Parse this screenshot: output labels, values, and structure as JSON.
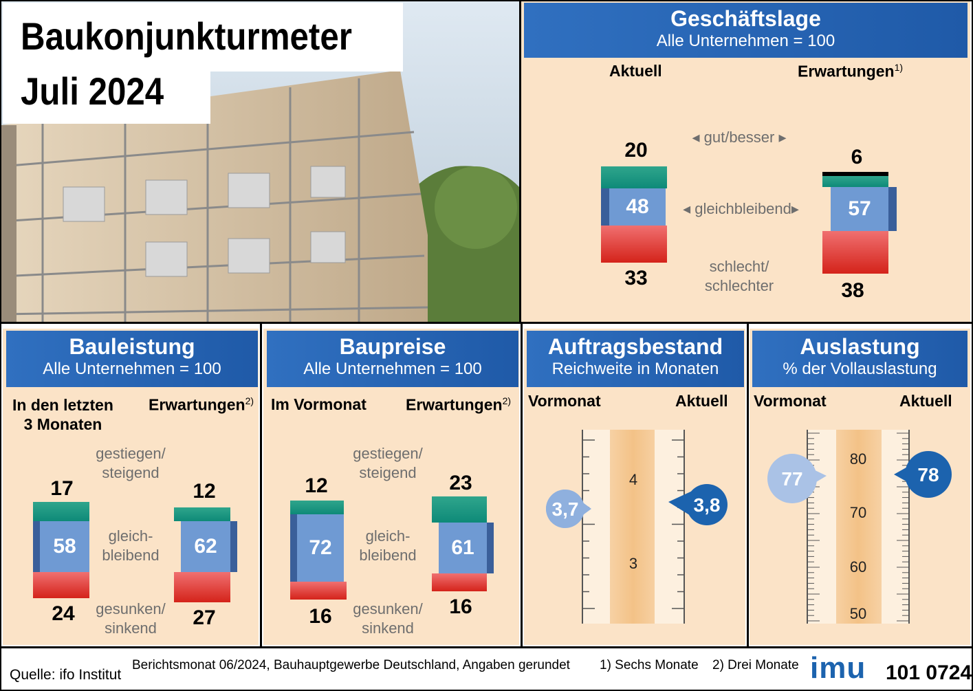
{
  "title": {
    "line1": "Baukonjunkturmeter",
    "line2": "Juli 2024"
  },
  "geschaeftslage": {
    "title": "Geschäftslage",
    "subtitle": "Alle Unternehmen = 100",
    "col_left": "Aktuell",
    "col_right": "Erwartungen",
    "col_right_note": "1)",
    "label_good": "gut/besser",
    "label_same": "gleichbleibend",
    "label_bad": "schlecht/\nschlechter"
  },
  "bauleistung": {
    "title": "Bauleistung",
    "subtitle": "Alle Unternehmen = 100",
    "col_left": "In den letzten\n3 Monaten",
    "col_right": "Erwartungen",
    "col_right_note": "2)",
    "label_up": "gestiegen/\nsteigend",
    "label_same": "gleich-\nbleibend",
    "label_down": "gesunken/\nsinkend"
  },
  "baupreise": {
    "title": "Baupreise",
    "subtitle": "Alle Unternehmen = 100",
    "col_left": "Im Vormonat",
    "col_right": "Erwartungen",
    "col_right_note": "2)",
    "label_up": "gestiegen/\nsteigend",
    "label_same": "gleich-\nbleibend",
    "label_down": "gesunken/\nsinkend"
  },
  "auftragsbestand": {
    "title": "Auftragsbestand",
    "subtitle": "Reichweite in Monaten",
    "col_left": "Vormonat",
    "col_right": "Aktuell"
  },
  "auslastung": {
    "title": "Auslastung",
    "subtitle": "% der Vollauslastung",
    "col_left": "Vormonat",
    "col_right": "Aktuell"
  },
  "footer": {
    "source": "Quelle: ifo Institut",
    "note": "Berichtsmonat 06/2024, Bauhauptgewerbe Deutschland, Angaben gerundet",
    "fn1": "1) Sechs Monate",
    "fn2": "2) Drei Monate",
    "logo": "imu",
    "code": "101 0724"
  },
  "colors": {
    "header": "#2466b4",
    "panel": "#fbe3c7",
    "good": "#1a9580",
    "same": "#6f9ad3",
    "bad": "#e0352a"
  },
  "chart_data": [
    {
      "type": "stacked-bar",
      "title": "Geschäftslage",
      "categories": [
        "Aktuell",
        "Erwartungen"
      ],
      "series": [
        {
          "name": "gut/besser",
          "values": [
            20,
            6
          ]
        },
        {
          "name": "gleichbleibend",
          "values": [
            48,
            57
          ]
        },
        {
          "name": "schlecht/schlechter",
          "values": [
            33,
            38
          ]
        }
      ],
      "labels": {
        "aktuell": {
          "good": "20",
          "same": "48",
          "bad": "33"
        },
        "erwartungen": {
          "good": "6",
          "same": "57",
          "bad": "38"
        }
      }
    },
    {
      "type": "stacked-bar",
      "title": "Bauleistung",
      "categories": [
        "In den letzten 3 Monaten",
        "Erwartungen"
      ],
      "series": [
        {
          "name": "gestiegen/steigend",
          "values": [
            17,
            12
          ]
        },
        {
          "name": "gleichbleibend",
          "values": [
            58,
            62
          ]
        },
        {
          "name": "gesunken/sinkend",
          "values": [
            24,
            27
          ]
        }
      ],
      "labels": {
        "left": {
          "up": "17",
          "same": "58",
          "down": "24"
        },
        "right": {
          "up": "12",
          "same": "62",
          "down": "27"
        }
      }
    },
    {
      "type": "stacked-bar",
      "title": "Baupreise",
      "categories": [
        "Im Vormonat",
        "Erwartungen"
      ],
      "series": [
        {
          "name": "gestiegen/steigend",
          "values": [
            12,
            23
          ]
        },
        {
          "name": "gleichbleibend",
          "values": [
            72,
            61
          ]
        },
        {
          "name": "gesunken/sinkend",
          "values": [
            16,
            16
          ]
        }
      ],
      "labels": {
        "left": {
          "up": "12",
          "same": "72",
          "down": "16"
        },
        "right": {
          "up": "23",
          "same": "61",
          "down": "16"
        }
      }
    },
    {
      "type": "gauge",
      "title": "Auftragsbestand",
      "unit": "Monate",
      "ticks": [
        "4",
        "3"
      ],
      "vormonat": 3.7,
      "aktuell": 3.8,
      "vormonat_label": "3,7",
      "aktuell_label": "3,8"
    },
    {
      "type": "gauge",
      "title": "Auslastung",
      "unit": "%",
      "ticks": [
        "80",
        "70",
        "60",
        "50"
      ],
      "vormonat": 77,
      "aktuell": 78,
      "vormonat_label": "77",
      "aktuell_label": "78"
    }
  ]
}
